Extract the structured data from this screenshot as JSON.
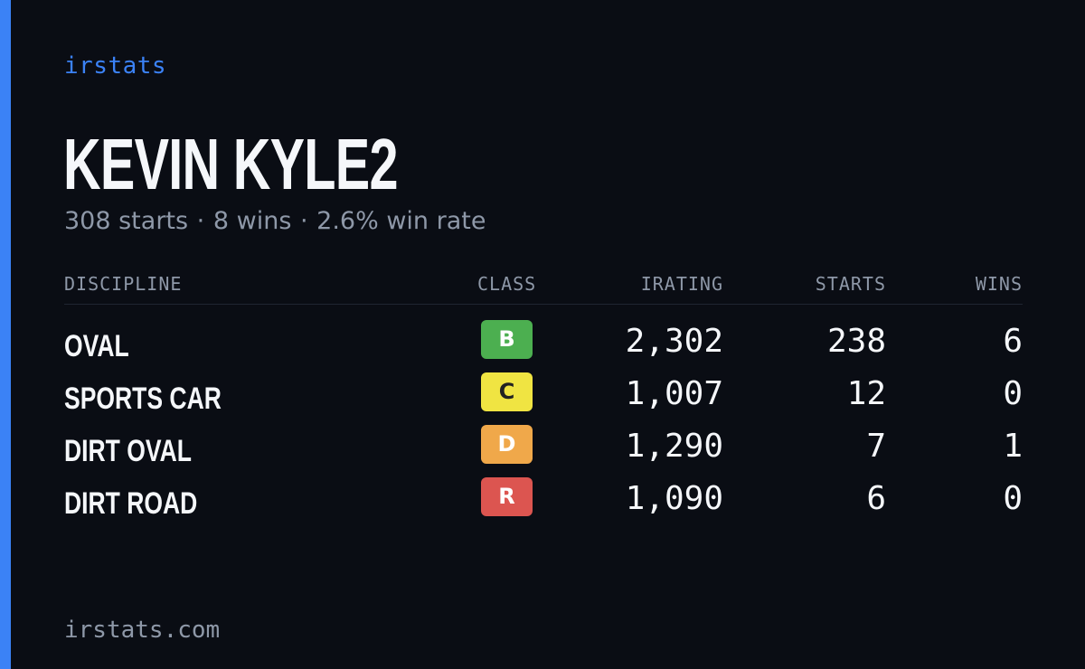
{
  "brand": "irstats",
  "player": {
    "name": "KEVIN KYLE2"
  },
  "summary": {
    "starts": "308 starts",
    "wins": "8 wins",
    "win_rate": "2.6% win rate",
    "separator": "·"
  },
  "table": {
    "headers": {
      "discipline": "DISCIPLINE",
      "class": "CLASS",
      "irating": "IRATING",
      "starts": "STARTS",
      "wins": "WINS"
    },
    "rows": [
      {
        "discipline": "OVAL",
        "class": "B",
        "class_color": "#4caf50",
        "class_text_color": "#ffffff",
        "irating": "2,302",
        "starts": "238",
        "wins": "6"
      },
      {
        "discipline": "SPORTS CAR",
        "class": "C",
        "class_color": "#f0e442",
        "class_text_color": "#222222",
        "irating": "1,007",
        "starts": "12",
        "wins": "0"
      },
      {
        "discipline": "DIRT OVAL",
        "class": "D",
        "class_color": "#f0a84a",
        "class_text_color": "#ffffff",
        "irating": "1,290",
        "starts": "7",
        "wins": "1"
      },
      {
        "discipline": "DIRT ROAD",
        "class": "R",
        "class_color": "#dc5550",
        "class_text_color": "#ffffff",
        "irating": "1,090",
        "starts": "6",
        "wins": "0"
      }
    ]
  },
  "footer": "irstats.com",
  "colors": {
    "background": "#0a0d14",
    "accent": "#3b82f6",
    "text_primary": "#f5f7fa",
    "text_muted": "#8e98a8"
  }
}
